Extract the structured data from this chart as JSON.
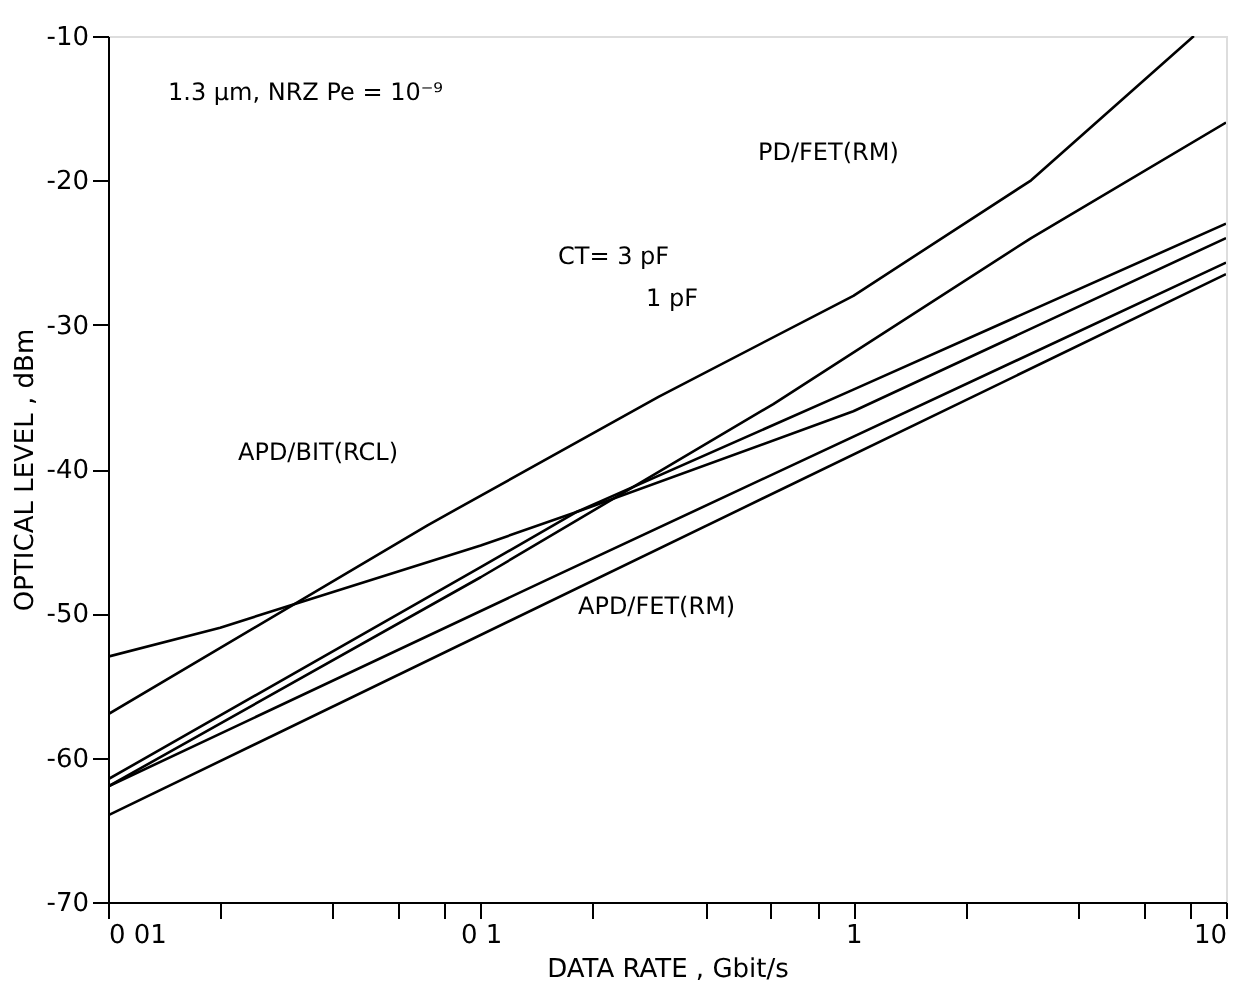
{
  "chart_data": {
    "type": "line",
    "xlabel": "DATA RATE ,  Gbit/s",
    "ylabel": "OPTICAL LEVEL ,  dBm",
    "log": "x",
    "grid": false,
    "marker": "none",
    "line_style": "solid",
    "xlim": [
      0.01,
      10
    ],
    "ylim": [
      -70,
      -10
    ],
    "xticks": [
      {
        "value": 0.01,
        "label": "0 01"
      },
      {
        "value": 0.02,
        "label": null
      },
      {
        "value": 0.04,
        "label": null
      },
      {
        "value": 0.06,
        "label": null
      },
      {
        "value": 0.08,
        "label": null
      },
      {
        "value": 0.1,
        "label": "0 1"
      },
      {
        "value": 0.2,
        "label": null
      },
      {
        "value": 0.4,
        "label": null
      },
      {
        "value": 0.6,
        "label": null
      },
      {
        "value": 0.8,
        "label": null
      },
      1,
      {
        "value": 2,
        "label": null
      },
      {
        "value": 4,
        "label": null
      },
      {
        "value": 6,
        "label": null
      },
      {
        "value": 8,
        "label": null
      },
      10
    ],
    "yticks": [
      -70,
      -60,
      -50,
      -40,
      -30,
      -20,
      -10
    ],
    "series": [
      {
        "color": "#000000",
        "x": [
          0.01,
          0.072,
          0.3,
          1,
          3,
          8.2
        ],
        "values": [
          -57,
          -43.9,
          -35,
          -28,
          -20,
          -10
        ]
      },
      {
        "color": "#000000",
        "x": [
          0.01,
          0.1,
          0.61,
          3,
          10
        ],
        "values": [
          -62,
          -47.5,
          -35.5,
          -24,
          -16
        ]
      },
      {
        "color": "#000000",
        "x": [
          0.01,
          0.02,
          0.035,
          0.1,
          0.18,
          1,
          10
        ],
        "values": [
          -53,
          -51,
          -49,
          -45.3,
          -43,
          -36,
          -24
        ]
      },
      {
        "color": "#000000",
        "x": [
          0.01,
          0.1,
          0.18,
          1,
          10
        ],
        "values": [
          -61.5,
          -46.8,
          -43,
          -34.5,
          -23
        ]
      },
      {
        "color": "#000000",
        "x": [
          0.01,
          0.15,
          10
        ],
        "values": [
          -62,
          -47.7,
          -25.7
        ]
      },
      {
        "color": "#000000",
        "x": [
          0.01,
          10
        ],
        "values": [
          -64,
          -26.5
        ]
      }
    ],
    "annotations": [
      "1.3 μm, NRZ   Pe = 10⁻⁹",
      "PD/FET(RM)",
      "CT= 3 pF",
      "1 pF",
      "APD/BIT(RCL)",
      "APD/FET(RM)"
    ]
  }
}
